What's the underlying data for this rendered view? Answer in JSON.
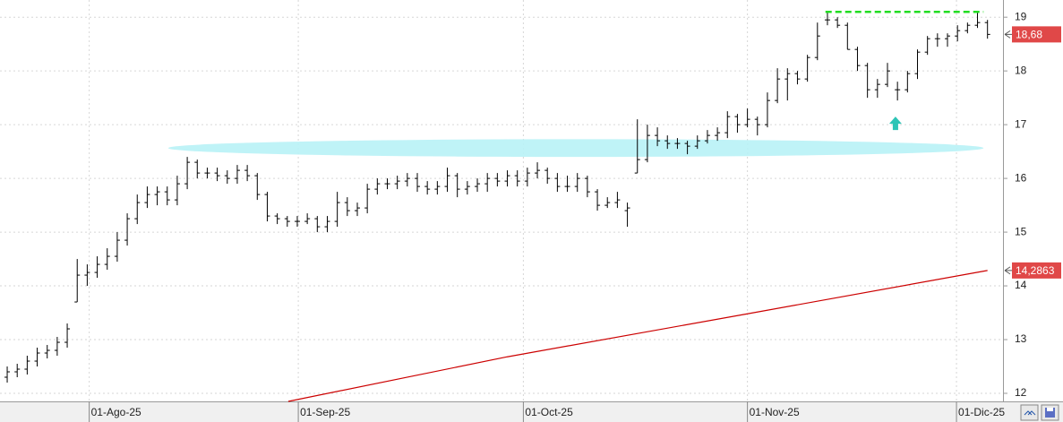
{
  "chart_data": {
    "type": "ohlc",
    "color": "#000000",
    "x": [
      0,
      1,
      2,
      3,
      4,
      5,
      6,
      7,
      8,
      9,
      10,
      11,
      12,
      13,
      14,
      15,
      16,
      17,
      18,
      19,
      20,
      21,
      22,
      23,
      24,
      25,
      26,
      27,
      28,
      29,
      30,
      31,
      32,
      33,
      34,
      35,
      36,
      37,
      38,
      39,
      40,
      41,
      42,
      43,
      44,
      45,
      46,
      47,
      48,
      49,
      50,
      51,
      52,
      53,
      54,
      55,
      56,
      57,
      58,
      59,
      60,
      61,
      62,
      63,
      64,
      65,
      66,
      67,
      68,
      69,
      70,
      71,
      72,
      73,
      74,
      75,
      76,
      77,
      78,
      79,
      80,
      81,
      82,
      83,
      84,
      85,
      86,
      87,
      88,
      89,
      90,
      91,
      92,
      93,
      94,
      95,
      96,
      97,
      98
    ],
    "open": [
      12.3,
      12.4,
      12.45,
      12.6,
      12.75,
      12.8,
      12.95,
      13.7,
      14.2,
      14.25,
      14.4,
      14.55,
      14.85,
      15.25,
      15.55,
      15.7,
      15.75,
      15.6,
      15.9,
      16.3,
      16.1,
      16.1,
      16.05,
      16.0,
      16.15,
      16.05,
      15.7,
      15.3,
      15.25,
      15.2,
      15.2,
      15.25,
      15.1,
      15.2,
      15.55,
      15.4,
      15.45,
      15.8,
      15.9,
      15.9,
      15.95,
      16.0,
      15.85,
      15.8,
      15.85,
      16.05,
      15.8,
      15.85,
      15.9,
      16.0,
      15.95,
      16.05,
      15.95,
      16.1,
      16.15,
      16.0,
      15.85,
      15.85,
      16.0,
      15.75,
      15.5,
      15.55,
      15.4,
      16.1,
      16.35,
      16.8,
      16.7,
      16.65,
      16.65,
      16.6,
      16.7,
      16.8,
      16.85,
      17.15,
      17.0,
      17.1,
      17.0,
      17.45,
      17.85,
      17.95,
      17.85,
      18.25,
      18.95,
      18.95,
      18.85,
      18.4,
      18.1,
      17.65,
      17.75,
      17.65,
      17.65,
      17.95,
      18.35,
      18.6,
      18.6,
      18.65,
      18.75,
      18.85,
      18.9
    ],
    "high": [
      12.5,
      12.55,
      12.7,
      12.85,
      12.9,
      13.05,
      13.3,
      14.5,
      14.4,
      14.55,
      14.7,
      15.0,
      15.35,
      15.7,
      15.85,
      15.85,
      15.85,
      16.05,
      16.4,
      16.35,
      16.2,
      16.2,
      16.15,
      16.25,
      16.25,
      16.1,
      15.75,
      15.35,
      15.3,
      15.3,
      15.35,
      15.3,
      15.3,
      15.75,
      15.65,
      15.55,
      15.9,
      16.0,
      16.0,
      16.05,
      16.1,
      16.1,
      15.95,
      15.95,
      16.2,
      16.1,
      15.95,
      16.0,
      16.1,
      16.1,
      16.15,
      16.15,
      16.2,
      16.3,
      16.2,
      16.1,
      16.05,
      16.1,
      16.05,
      15.8,
      15.65,
      15.75,
      15.55,
      17.1,
      17.0,
      16.95,
      16.8,
      16.75,
      16.7,
      16.8,
      16.9,
      16.95,
      17.25,
      17.2,
      17.3,
      17.15,
      17.6,
      18.05,
      18.05,
      18.0,
      18.3,
      18.9,
      19.1,
      19.0,
      18.9,
      18.45,
      18.15,
      17.85,
      18.15,
      17.8,
      18.0,
      18.4,
      18.65,
      18.7,
      18.7,
      18.85,
      18.9,
      19.1,
      18.95
    ],
    "low": [
      12.2,
      12.3,
      12.35,
      12.5,
      12.65,
      12.7,
      12.85,
      13.7,
      14.0,
      14.15,
      14.3,
      14.45,
      14.75,
      15.15,
      15.45,
      15.5,
      15.5,
      15.5,
      15.8,
      16.0,
      16.0,
      15.95,
      15.9,
      15.9,
      15.95,
      15.6,
      15.2,
      15.15,
      15.1,
      15.1,
      15.15,
      15.0,
      15.0,
      15.1,
      15.3,
      15.3,
      15.35,
      15.7,
      15.8,
      15.8,
      15.85,
      15.75,
      15.7,
      15.7,
      15.75,
      15.65,
      15.7,
      15.75,
      15.75,
      15.85,
      15.85,
      15.85,
      15.85,
      16.0,
      15.9,
      15.75,
      15.75,
      15.75,
      15.65,
      15.4,
      15.45,
      15.45,
      15.1,
      16.1,
      16.3,
      16.6,
      16.55,
      16.55,
      16.45,
      16.55,
      16.65,
      16.7,
      16.75,
      16.85,
      16.95,
      16.8,
      16.95,
      17.4,
      17.45,
      17.75,
      17.8,
      18.2,
      18.85,
      18.8,
      18.4,
      18.0,
      17.5,
      17.5,
      17.7,
      17.45,
      17.6,
      17.85,
      18.3,
      18.45,
      18.45,
      18.55,
      18.7,
      18.8,
      18.6
    ],
    "close": [
      12.4,
      12.45,
      12.6,
      12.75,
      12.8,
      12.95,
      13.2,
      14.2,
      14.25,
      14.4,
      14.55,
      14.85,
      15.25,
      15.55,
      15.7,
      15.75,
      15.6,
      15.9,
      16.3,
      16.1,
      16.1,
      16.05,
      16.0,
      16.15,
      16.05,
      15.7,
      15.3,
      15.25,
      15.2,
      15.2,
      15.25,
      15.1,
      15.2,
      15.55,
      15.4,
      15.45,
      15.8,
      15.9,
      15.9,
      15.95,
      16.0,
      15.85,
      15.8,
      15.85,
      16.05,
      15.8,
      15.85,
      15.9,
      16.0,
      15.95,
      16.05,
      15.95,
      16.1,
      16.15,
      16.0,
      15.85,
      15.85,
      16.0,
      15.75,
      15.5,
      15.55,
      15.6,
      15.45,
      16.35,
      16.8,
      16.7,
      16.65,
      16.65,
      16.6,
      16.7,
      16.8,
      16.85,
      17.15,
      17.0,
      17.1,
      17.0,
      17.45,
      17.85,
      17.95,
      17.85,
      18.25,
      18.65,
      18.95,
      18.85,
      18.4,
      18.1,
      17.65,
      17.75,
      18.0,
      17.65,
      17.95,
      18.35,
      18.6,
      18.6,
      18.65,
      18.75,
      18.85,
      18.9,
      18.68
    ],
    "lines": [
      {
        "color": "#cc0000",
        "x": [
          28.1,
          50,
          74,
          98
        ],
        "values": [
          11.85,
          12.68,
          13.48,
          14.2863
        ]
      }
    ],
    "price_labels": [
      {
        "value": 18.68,
        "label": "18,68"
      },
      {
        "value": 14.2863,
        "label": "14,2863"
      }
    ],
    "price_label_color": "#e04848",
    "annotations": {
      "resistance": {
        "x": [
          81.8,
          97.6
        ],
        "y": 19.1,
        "color": "#22dd22"
      },
      "zone": {
        "x": [
          16.1,
          97.6
        ],
        "y": [
          16.4,
          16.73
        ],
        "color": "#b8f2f6"
      },
      "arrow": {
        "x": 88.8,
        "y": [
          16.9,
          17.15
        ],
        "color": "#2ec4b6"
      }
    },
    "xlim": [
      -0.72,
      99.55
    ],
    "ylim": [
      11.85,
      19.32
    ],
    "yticks": [
      12,
      13,
      14,
      15,
      16,
      17,
      18,
      19
    ],
    "xticks": [
      {
        "value": 8.2,
        "label": "01-Ago-25"
      },
      {
        "value": 29.1,
        "label": "01-Sep-25"
      },
      {
        "value": 51.6,
        "label": "01-Oct-25"
      },
      {
        "value": 74,
        "label": "01-Nov-25"
      },
      {
        "value": 94.9,
        "label": "01-Dic-25"
      }
    ],
    "grid": true
  }
}
